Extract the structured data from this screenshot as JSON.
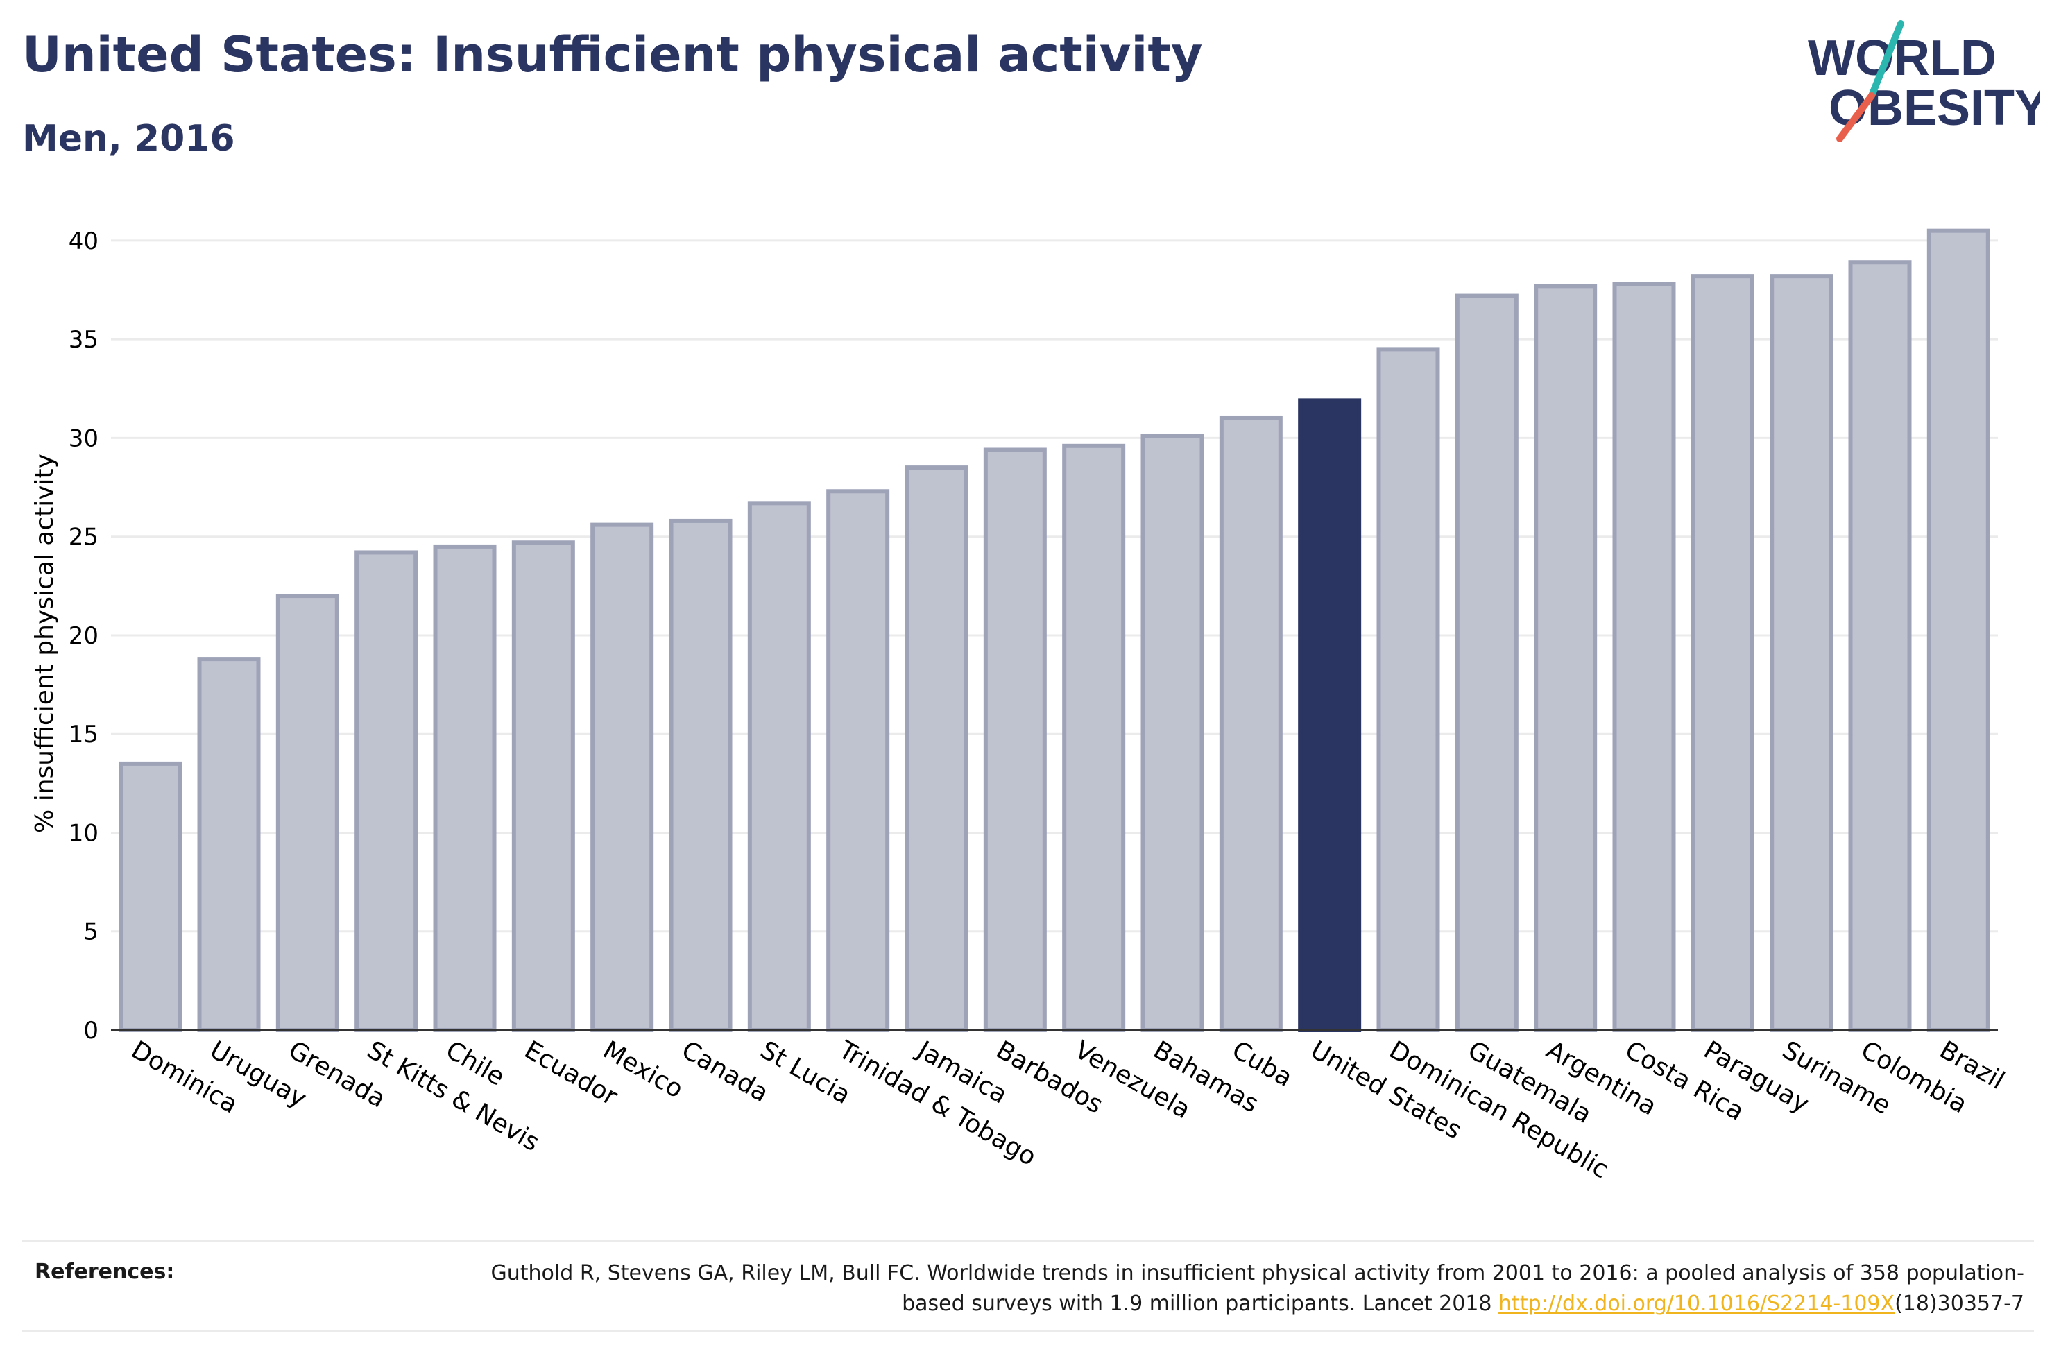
{
  "header": {
    "title": "United States: Insufficient physical activity",
    "subtitle": "Men, 2016"
  },
  "logo": {
    "line1": "WORLD",
    "line2": "OBESITY",
    "accent_colors": [
      "#2bb6b0",
      "#e8604c"
    ]
  },
  "colors": {
    "highlight": "#2b3561",
    "bar_fill": "#bfc2cf",
    "bar_stroke": "#9ea3b8",
    "grid": "#ebebeb",
    "text": "#2b3561",
    "link": "#f0b41e"
  },
  "chart_data": {
    "type": "bar",
    "title": "United States: Insufficient physical activity",
    "subtitle": "Men, 2016",
    "xlabel": "",
    "ylabel": "% insufficient physical activity",
    "ylim": [
      0,
      42
    ],
    "yticks": [
      0,
      5,
      10,
      15,
      20,
      25,
      30,
      35,
      40
    ],
    "grid": true,
    "highlight": "United States",
    "categories": [
      "Dominica",
      "Uruguay",
      "Grenada",
      "St Kitts & Nevis",
      "Chile",
      "Ecuador",
      "Mexico",
      "Canada",
      "St Lucia",
      "Trinidad & Tobago",
      "Jamaica",
      "Barbados",
      "Venezuela",
      "Bahamas",
      "Cuba",
      "United States",
      "Dominican Republic",
      "Guatemala",
      "Argentina",
      "Costa Rica",
      "Paraguay",
      "Suriname",
      "Colombia",
      "Brazil"
    ],
    "values": [
      13.5,
      18.8,
      22.0,
      24.2,
      24.5,
      24.7,
      25.6,
      25.8,
      26.7,
      27.3,
      28.5,
      29.4,
      29.6,
      30.1,
      31.0,
      31.9,
      34.5,
      37.2,
      37.7,
      37.8,
      38.2,
      38.2,
      38.9,
      40.5
    ]
  },
  "references": {
    "label": "References:",
    "text_part1": "Guthold R, Stevens GA, Riley LM, Bull FC. Worldwide trends in insufficient physical activity from 2001 to 2016: a pooled analysis of 358 population-based surveys with 1.9 million participants. Lancet 2018 ",
    "link_text": "http://dx.doi.org/10.1016/S2214-109X",
    "text_part2": "(18)30357-7"
  }
}
